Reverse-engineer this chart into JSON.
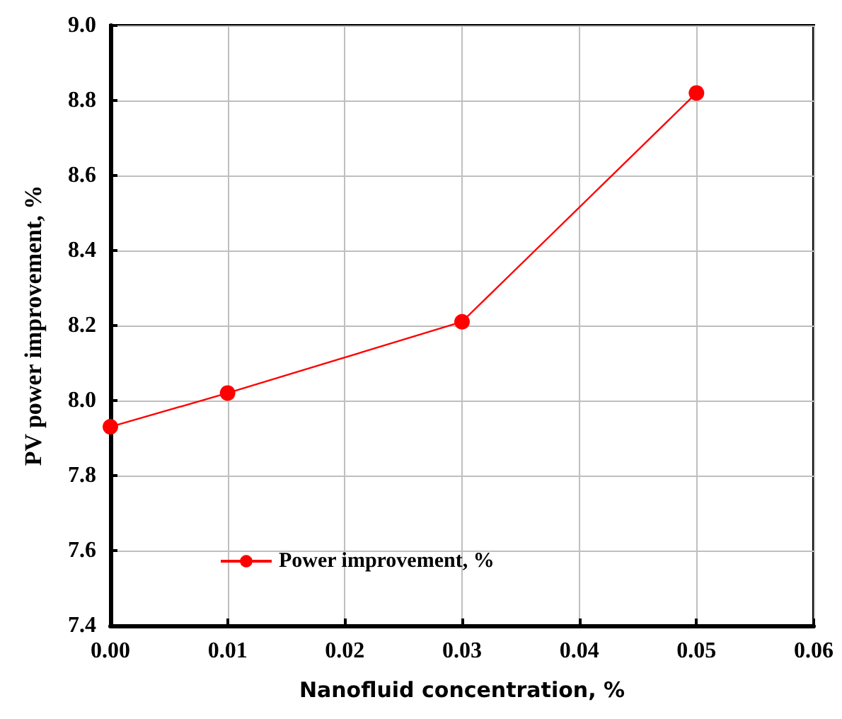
{
  "chart_data": {
    "type": "line",
    "xlabel": "Nanofluid concentration, %",
    "ylabel": "PV power improvement, %",
    "x": [
      0,
      0.01,
      0.03,
      0.05
    ],
    "series": [
      {
        "name": "Power improvement, %",
        "color": "#ff0000",
        "values": [
          7.93,
          8.02,
          8.21,
          8.82
        ]
      }
    ],
    "xlim": [
      0,
      0.06
    ],
    "xticks": [
      {
        "value": 0,
        "label": "0.00"
      },
      {
        "value": 0.01,
        "label": "0.01"
      },
      {
        "value": 0.02,
        "label": "0.02"
      },
      {
        "value": 0.03,
        "label": "0.03"
      },
      {
        "value": 0.04,
        "label": "0.04"
      },
      {
        "value": 0.05,
        "label": "0.05"
      },
      {
        "value": 0.06,
        "label": "0.06"
      }
    ],
    "ylim": [
      7.4,
      9.0
    ],
    "yticks": [
      {
        "value": 7.4,
        "label": "7.4"
      },
      {
        "value": 7.6,
        "label": "7.6"
      },
      {
        "value": 7.8,
        "label": "7.8"
      },
      {
        "value": 8.0,
        "label": "8.0"
      },
      {
        "value": 8.2,
        "label": "8.2"
      },
      {
        "value": 8.4,
        "label": "8.4"
      },
      {
        "value": 8.6,
        "label": "8.6"
      },
      {
        "value": 8.8,
        "label": "8.8"
      },
      {
        "value": 9.0,
        "label": "9.0"
      }
    ],
    "grid": true,
    "legend": "bottom left",
    "marker": "circle",
    "line_style": "solid"
  }
}
